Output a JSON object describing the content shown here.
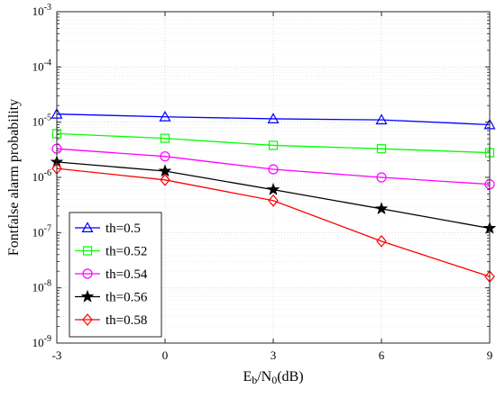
{
  "chart_data": {
    "type": "line",
    "x": [
      -3,
      0,
      3,
      6,
      9
    ],
    "x_ticks": [
      -3,
      0,
      3,
      6,
      9
    ],
    "xlim": [
      -3,
      9
    ],
    "y_scale": "log",
    "ylim": [
      1e-09,
      0.001
    ],
    "y_tick_exponents": [
      "-9",
      "-8",
      "-7",
      "-6",
      "-5",
      "-4",
      "-3"
    ],
    "y_tick_base": "10",
    "grid": true,
    "minor_grid": true,
    "legend_position": "bottom-left",
    "xlabel": {
      "main": "E",
      "sub1": "b",
      "mid": "/N",
      "sub2": "0",
      "tail": "(dB)"
    },
    "ylabel": "Fontfalse alarm probability",
    "series": [
      {
        "name": "th=0.5",
        "color": "#0000ff",
        "marker": "triangle",
        "values": [
          1.4e-05,
          1.25e-05,
          1.15e-05,
          1.1e-05,
          9e-06
        ]
      },
      {
        "name": "th=0.52",
        "color": "#00ff00",
        "marker": "square",
        "values": [
          6.2e-06,
          5.1e-06,
          3.8e-06,
          3.3e-06,
          2.8e-06
        ]
      },
      {
        "name": "th=0.54",
        "color": "#ff00ff",
        "marker": "circle",
        "values": [
          3.3e-06,
          2.4e-06,
          1.4e-06,
          1e-06,
          7.5e-07
        ]
      },
      {
        "name": "th=0.56",
        "color": "#000000",
        "marker": "star",
        "values": [
          1.9e-06,
          1.3e-06,
          6e-07,
          2.7e-07,
          1.2e-07
        ]
      },
      {
        "name": "th=0.58",
        "color": "#ff0000",
        "marker": "diamond",
        "values": [
          1.45e-06,
          9e-07,
          3.8e-07,
          7e-08,
          1.6e-08
        ]
      }
    ]
  }
}
